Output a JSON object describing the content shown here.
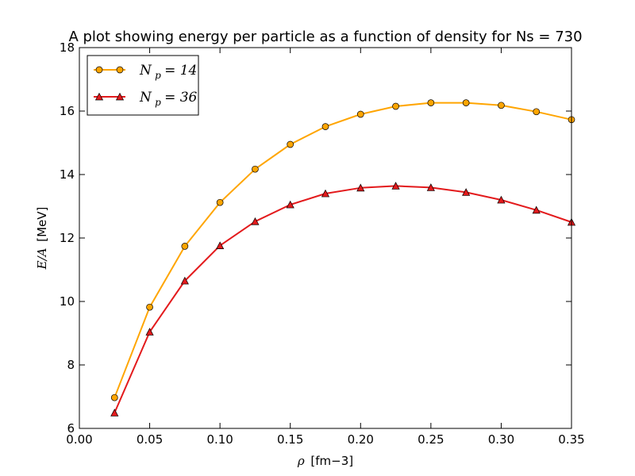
{
  "chart_data": {
    "type": "line",
    "title": "A plot showing energy per particle as a function of density for Ns = 730",
    "xlabel": {
      "symbol": "ρ",
      "text": "[fm−3]"
    },
    "ylabel": {
      "symbol": "E/A",
      "text": "[MeV]"
    },
    "xlim": [
      0.0,
      0.35
    ],
    "ylim": [
      6,
      18
    ],
    "xticks": [
      0.0,
      0.05,
      0.1,
      0.15,
      0.2,
      0.25,
      0.3,
      0.35
    ],
    "xtick_labels": [
      "0.00",
      "0.05",
      "0.10",
      "0.15",
      "0.20",
      "0.25",
      "0.30",
      "0.35"
    ],
    "yticks": [
      6,
      8,
      10,
      12,
      14,
      16,
      18
    ],
    "ytick_labels": [
      "6",
      "8",
      "10",
      "12",
      "14",
      "16",
      "18"
    ],
    "grid": false,
    "legend_position": "top-left",
    "x": [
      0.025,
      0.05,
      0.075,
      0.1,
      0.125,
      0.15,
      0.175,
      0.2,
      0.225,
      0.25,
      0.275,
      0.3,
      0.325,
      0.35
    ],
    "series": [
      {
        "name": "N_p = 14",
        "legend_base": "N",
        "legend_sub": "p",
        "legend_rest": " = 14",
        "color": "#ffa500",
        "marker": "circle",
        "values": [
          6.97,
          9.82,
          11.74,
          13.12,
          14.17,
          14.95,
          15.51,
          15.9,
          16.15,
          16.26,
          16.26,
          16.18,
          15.98,
          15.73
        ]
      },
      {
        "name": "N_p = 36",
        "legend_base": "N",
        "legend_sub": "p",
        "legend_rest": " = 36",
        "color": "#e31a1c",
        "marker": "triangle",
        "values": [
          6.49,
          9.04,
          10.65,
          11.76,
          12.52,
          13.05,
          13.4,
          13.58,
          13.64,
          13.59,
          13.44,
          13.2,
          12.88,
          12.5
        ]
      }
    ]
  }
}
